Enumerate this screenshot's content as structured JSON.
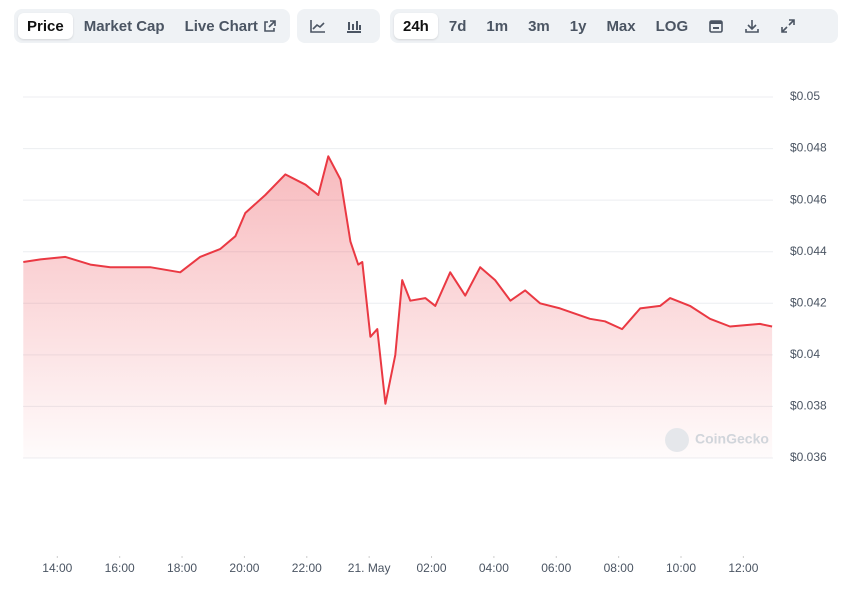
{
  "toolbar": {
    "tabs": [
      "Price",
      "Market Cap",
      "Live Chart"
    ],
    "ranges": [
      "24h",
      "7d",
      "1m",
      "3m",
      "1y",
      "Max",
      "LOG"
    ]
  },
  "chart_data": {
    "type": "area",
    "color": "#ea3943",
    "watermark": "CoinGecko",
    "x": [
      12.91,
      13.46,
      14.26,
      15.06,
      15.7,
      16.98,
      17.94,
      18.58,
      19.22,
      19.71,
      20.03,
      20.67,
      21.31,
      21.96,
      22.37,
      22.69,
      23.08,
      23.4,
      23.65,
      23.78,
      24.04,
      24.26,
      24.52,
      24.84,
      25.06,
      25.32,
      25.8,
      26.12,
      26.6,
      27.08,
      27.56,
      28.04,
      28.53,
      29.0,
      29.48,
      30.12,
      31.08,
      31.56,
      32.11,
      32.69,
      33.33,
      33.65,
      34.29,
      34.93,
      35.57,
      36.53,
      36.92
    ],
    "values": [
      0.0436,
      0.0437,
      0.0438,
      0.0435,
      0.0434,
      0.0434,
      0.0432,
      0.0438,
      0.0441,
      0.0446,
      0.0455,
      0.0462,
      0.047,
      0.0466,
      0.0462,
      0.0477,
      0.0468,
      0.0444,
      0.0435,
      0.0436,
      0.0407,
      0.041,
      0.0381,
      0.04,
      0.0429,
      0.0421,
      0.0422,
      0.0419,
      0.0432,
      0.0423,
      0.0434,
      0.0429,
      0.0421,
      0.0425,
      0.042,
      0.0418,
      0.0414,
      0.0413,
      0.041,
      0.0418,
      0.0419,
      0.0422,
      0.0419,
      0.0414,
      0.0411,
      0.0412,
      0.0411
    ],
    "xlim": [
      12.9,
      36.95
    ],
    "xticks": [
      {
        "value": 14,
        "label": "14:00"
      },
      {
        "value": 16,
        "label": "16:00"
      },
      {
        "value": 18,
        "label": "18:00"
      },
      {
        "value": 20,
        "label": "20:00"
      },
      {
        "value": 22,
        "label": "22:00"
      },
      {
        "value": 24,
        "label": "21. May"
      },
      {
        "value": 26,
        "label": "02:00"
      },
      {
        "value": 28,
        "label": "04:00"
      },
      {
        "value": 30,
        "label": "06:00"
      },
      {
        "value": 32,
        "label": "08:00"
      },
      {
        "value": 34,
        "label": "10:00"
      },
      {
        "value": 36,
        "label": "12:00"
      }
    ],
    "ylim": [
      0.036,
      0.05
    ],
    "yticks": [
      {
        "value": 0.036,
        "label": "$0.036"
      },
      {
        "value": 0.038,
        "label": "$0.038"
      },
      {
        "value": 0.04,
        "label": "$0.04"
      },
      {
        "value": 0.042,
        "label": "$0.042"
      },
      {
        "value": 0.044,
        "label": "$0.044"
      },
      {
        "value": 0.046,
        "label": "$0.046"
      },
      {
        "value": 0.048,
        "label": "$0.048"
      },
      {
        "value": 0.05,
        "label": "$0.05"
      }
    ],
    "grid": true
  }
}
